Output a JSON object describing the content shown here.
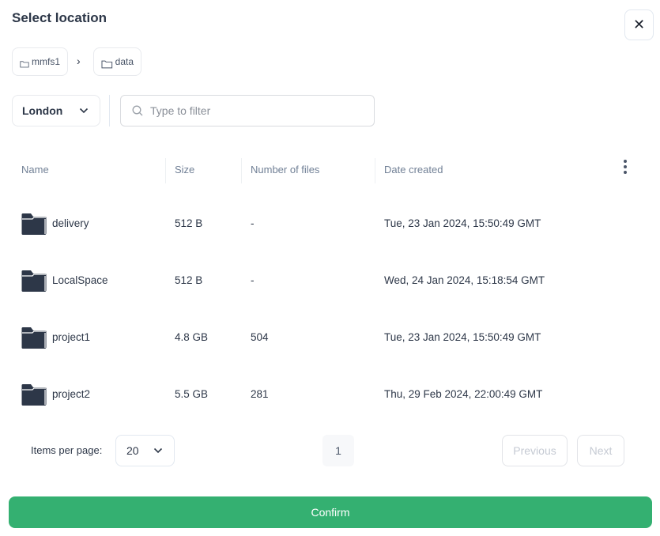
{
  "dialog": {
    "title": "Select location",
    "close_icon": "close-icon"
  },
  "breadcrumb": [
    {
      "label": "mmfs1",
      "icon": "folder-outline-icon"
    },
    {
      "label": "data",
      "icon": "folder-outline-icon"
    }
  ],
  "location_select": {
    "value": "London"
  },
  "filter": {
    "placeholder": "Type to filter",
    "value": ""
  },
  "table": {
    "columns": [
      "Name",
      "Size",
      "Number of files",
      "Date created"
    ],
    "rows": [
      {
        "name": "delivery",
        "size": "512 B",
        "files": "-",
        "date": "Tue, 23 Jan 2024, 15:50:49 GMT"
      },
      {
        "name": "LocalSpace",
        "size": "512 B",
        "files": "-",
        "date": "Wed, 24 Jan 2024, 15:18:54 GMT"
      },
      {
        "name": "project1",
        "size": "4.8 GB",
        "files": "504",
        "date": "Tue, 23 Jan 2024, 15:50:49 GMT"
      },
      {
        "name": "project2",
        "size": "5.5 GB",
        "files": "281",
        "date": "Thu, 29 Feb 2024, 22:00:49 GMT"
      }
    ]
  },
  "pagination": {
    "items_per_page_label": "Items per page:",
    "items_per_page": "20",
    "current_page": "1",
    "previous": "Previous",
    "next": "Next"
  },
  "confirm_label": "Confirm",
  "colors": {
    "accent": "#34b071",
    "folder": "#2d3748"
  }
}
